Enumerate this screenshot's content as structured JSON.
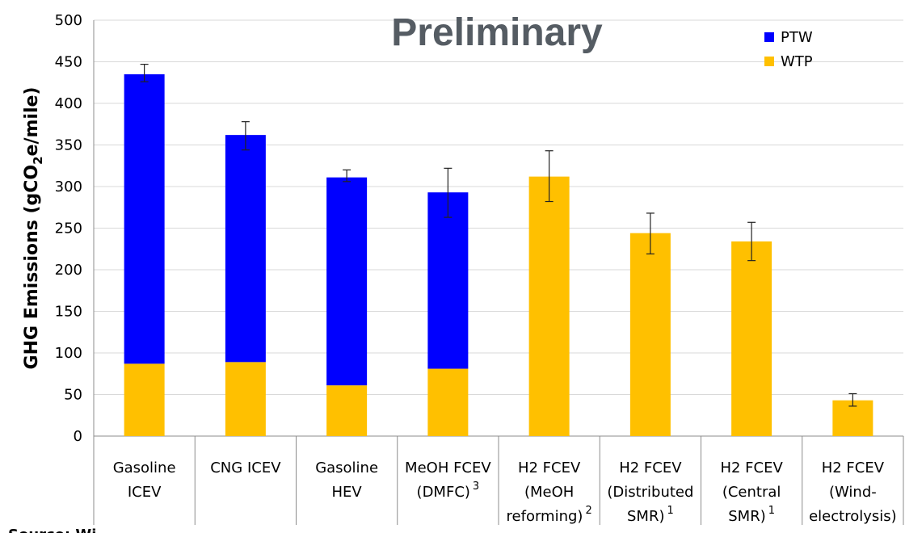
{
  "chart_data": {
    "type": "bar",
    "stacked": true,
    "title": "",
    "watermark": "Preliminary",
    "ylabel_main": "GHG Emissions (gCO",
    "ylabel_sub": "2",
    "ylabel_tail": "e/mile)",
    "xlabel": "",
    "ylim": [
      0,
      500
    ],
    "yticks": [
      0,
      50,
      100,
      150,
      200,
      250,
      300,
      350,
      400,
      450,
      500
    ],
    "grid": true,
    "legend_position": "top-right",
    "categories": [
      {
        "lines": [
          "Gasoline",
          "ICEV"
        ],
        "sup": ""
      },
      {
        "lines": [
          "CNG ICEV"
        ],
        "sup": ""
      },
      {
        "lines": [
          "Gasoline",
          "HEV"
        ],
        "sup": ""
      },
      {
        "lines": [
          "MeOH FCEV",
          "(DMFC)"
        ],
        "sup": "3"
      },
      {
        "lines": [
          "H2 FCEV",
          "(MeOH",
          "reforming)"
        ],
        "sup": "2"
      },
      {
        "lines": [
          "H2 FCEV",
          "(Distributed",
          "SMR)"
        ],
        "sup": "1"
      },
      {
        "lines": [
          "H2 FCEV",
          "(Central",
          "SMR)"
        ],
        "sup": "1"
      },
      {
        "lines": [
          "H2 FCEV",
          "(Wind-",
          "electrolysis)"
        ],
        "sup": ""
      }
    ],
    "series": [
      {
        "name": "WTP",
        "color": "#FFC000",
        "values": [
          87,
          89,
          61,
          81,
          312,
          244,
          234,
          43
        ]
      },
      {
        "name": "PTW",
        "color": "#0000FF",
        "values": [
          348,
          273,
          250,
          212,
          0,
          0,
          0,
          0
        ]
      }
    ],
    "legend_order": [
      "PTW",
      "WTP"
    ],
    "error_bars": [
      {
        "low": 426,
        "high": 447
      },
      {
        "low": 344,
        "high": 378
      },
      {
        "low": 306,
        "high": 320
      },
      {
        "low": 263,
        "high": 322
      },
      {
        "low": 282,
        "high": 343
      },
      {
        "low": 219,
        "high": 268
      },
      {
        "low": 211,
        "high": 257
      },
      {
        "low": 36,
        "high": 51
      }
    ],
    "footer_text": "Source: Wi..."
  }
}
